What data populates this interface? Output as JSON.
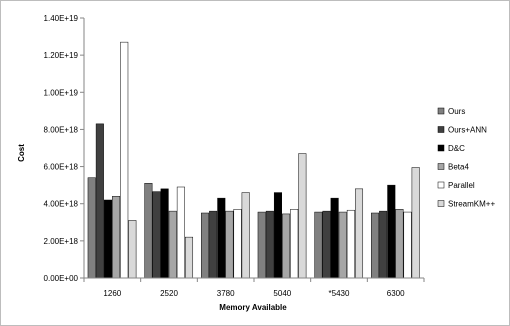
{
  "chart_data": {
    "type": "bar",
    "title": "",
    "xlabel": "Memory Available",
    "ylabel": "Cost",
    "categories": [
      "1260",
      "2520",
      "3780",
      "5040",
      "*5430",
      "6300"
    ],
    "ylim": [
      0,
      1.4e+19
    ],
    "yticks": [
      0,
      2e+18,
      4e+18,
      6e+18,
      8e+18,
      1e+19,
      1.2e+19,
      1.4e+19
    ],
    "ytick_labels": [
      "0.00E+00",
      "2.00E+18",
      "4.00E+18",
      "6.00E+18",
      "8.00E+18",
      "1.00E+19",
      "1.20E+19",
      "1.40E+19"
    ],
    "grid": false,
    "legend_position": "right",
    "series": [
      {
        "name": "Ours",
        "color": "#808080",
        "values": [
          5.4e+18,
          5.1e+18,
          3.5e+18,
          3.55e+18,
          3.55e+18,
          3.5e+18
        ]
      },
      {
        "name": "Ours+ANN",
        "color": "#404040",
        "values": [
          8.3e+18,
          4.65e+18,
          3.6e+18,
          3.6e+18,
          3.6e+18,
          3.6e+18
        ]
      },
      {
        "name": "D&C",
        "color": "#000000",
        "values": [
          4.2e+18,
          4.8e+18,
          4.3e+18,
          4.6e+18,
          4.3e+18,
          5e+18
        ]
      },
      {
        "name": "Beta4",
        "color": "#a6a6a6",
        "values": [
          4.4e+18,
          3.6e+18,
          3.6e+18,
          3.45e+18,
          3.55e+18,
          3.7e+18
        ]
      },
      {
        "name": "Parallel",
        "color": "#ffffff",
        "values": [
          1.27e+19,
          4.9e+18,
          3.7e+18,
          3.7e+18,
          3.65e+18,
          3.55e+18
        ]
      },
      {
        "name": "StreamKM++",
        "color": "#d9d9d9",
        "values": [
          3.1e+18,
          2.2e+18,
          4.6e+18,
          6.7e+18,
          4.8e+18,
          5.95e+18
        ]
      }
    ]
  }
}
